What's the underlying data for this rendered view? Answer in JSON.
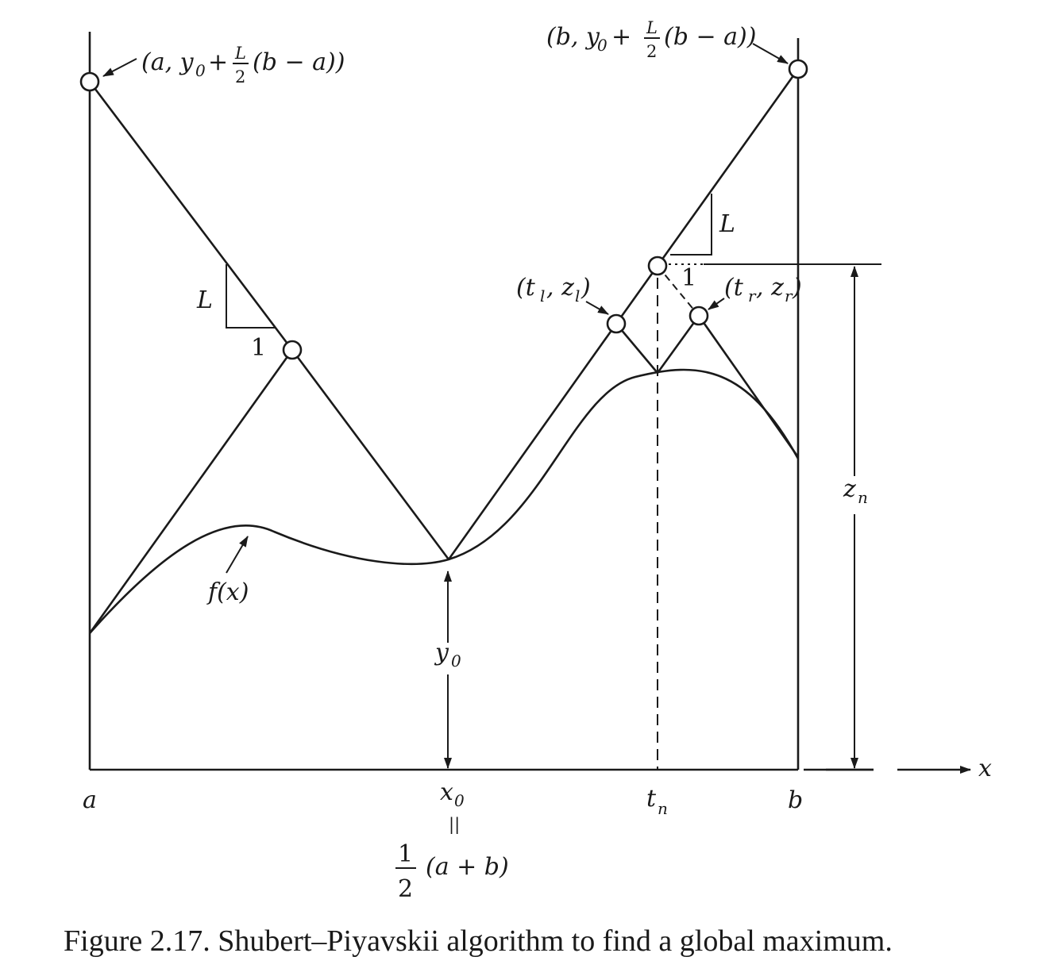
{
  "figure": {
    "caption": "Figure 2.17. Shubert–Piyavskii algorithm to find a global maximum.",
    "x_axis_label": "x",
    "labels": {
      "a": "a",
      "b": "b",
      "x0": "x",
      "x0_sub": "0",
      "equals": "||",
      "half_num": "1",
      "half_den": "2",
      "half_rest": "(a + b)",
      "t_n": "t",
      "t_n_sub": "n",
      "y0": "y",
      "y0_sub": "0",
      "z_n": "z",
      "z_n_sub": "n",
      "f_x": "f(x)",
      "slope_L": "L",
      "slope_run": "1",
      "t_l_z_l": "(t_l, z_l)",
      "t_r_z_r": "(t_r, z_r)",
      "left_point": "(a, y₀ + L/2 (b − a))",
      "right_point": "(b, y₀ + L/2 (b − a))"
    }
  }
}
